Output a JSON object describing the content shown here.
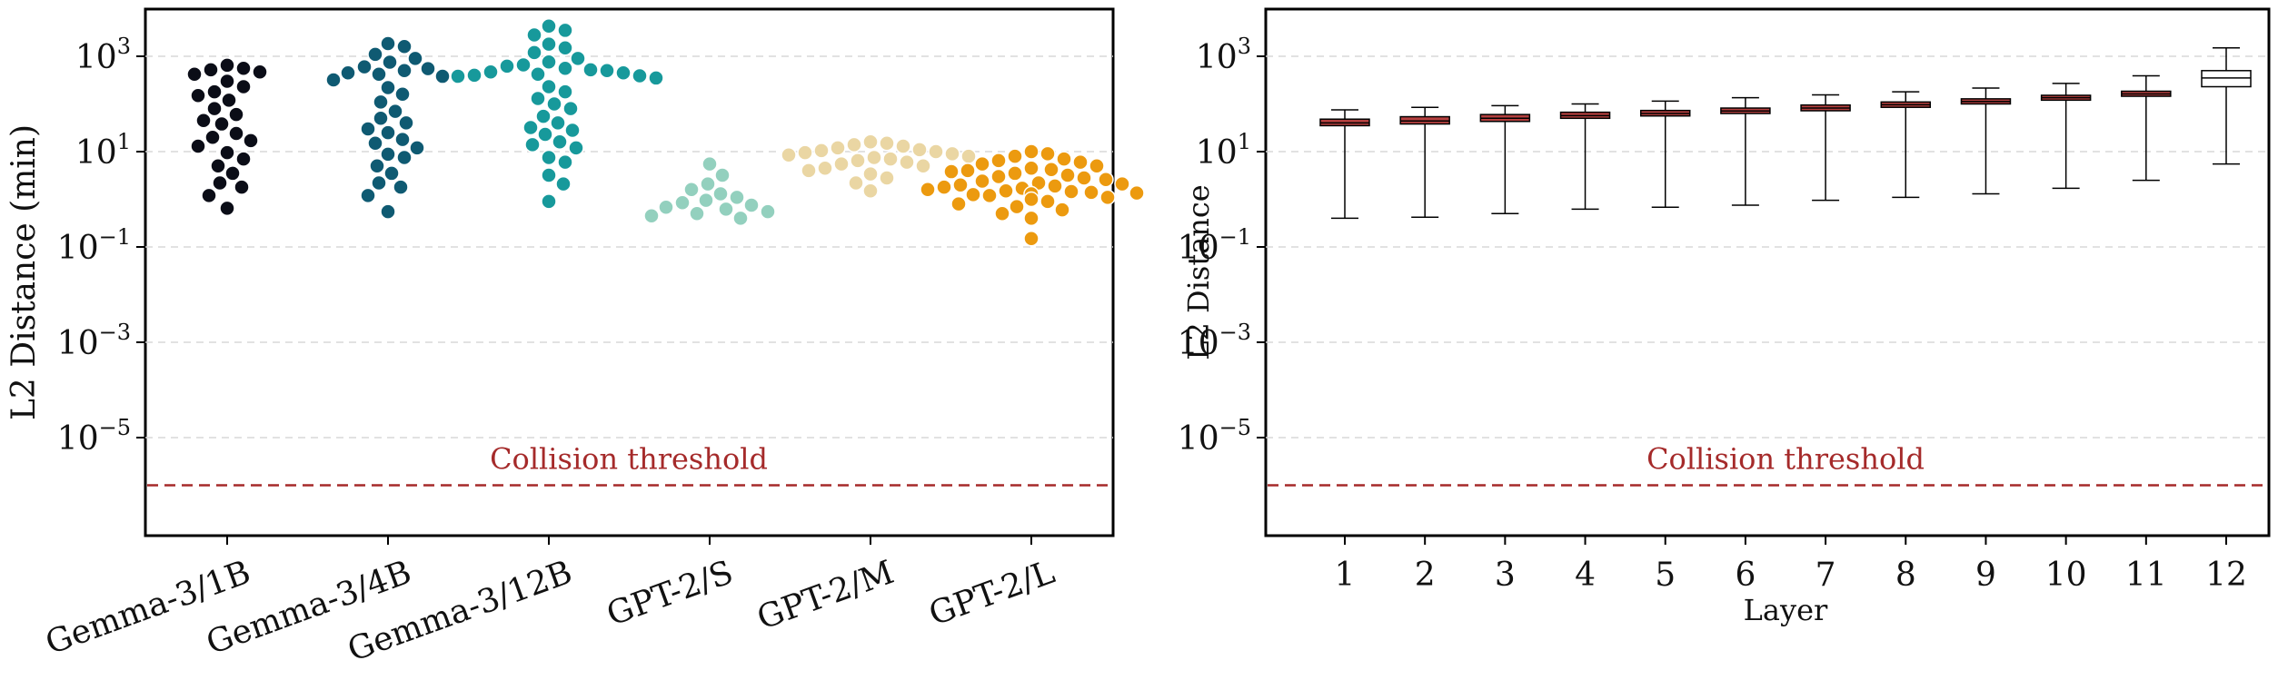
{
  "chart_data": [
    {
      "type": "scatter",
      "subtype": "swarm",
      "ylabel": "L2 Distance (min)",
      "xlabel": "",
      "yscale": "log",
      "ylim": [
        1e-07,
        10000.0
      ],
      "yticks": [
        {
          "base": "10",
          "exp": "3",
          "value": 1000
        },
        {
          "base": "10",
          "exp": "1",
          "value": 10
        },
        {
          "base": "10",
          "exp": "−1",
          "value": 0.1
        },
        {
          "base": "10",
          "exp": "−3",
          "value": 0.001
        },
        {
          "base": "10",
          "exp": "−5",
          "value": 1e-05
        }
      ],
      "grid": "y-dashed",
      "threshold": {
        "label": "Collision threshold",
        "value": 1e-06,
        "color": "#a52a2a"
      },
      "categories": [
        "Gemma-3/1B",
        "Gemma-3/4B",
        "Gemma-3/12B",
        "GPT-2/S",
        "GPT-2/M",
        "GPT-2/L"
      ],
      "colors": [
        "#0b0d17",
        "#0f5a72",
        "#17999b",
        "#93d0be",
        "#ead6a3",
        "#ec9a0f"
      ],
      "series": [
        {
          "category": "Gemma-3/1B",
          "values": [
            650,
            560,
            520,
            470,
            420,
            300,
            230,
            180,
            150,
            120,
            80,
            60,
            45,
            38,
            24,
            20,
            17,
            13,
            9.5,
            7,
            5,
            3.5,
            2.2,
            1.8,
            1.2,
            0.65
          ]
        },
        {
          "category": "Gemma-3/4B",
          "values": [
            1850,
            1600,
            1100,
            900,
            750,
            600,
            550,
            500,
            450,
            420,
            380,
            320,
            220,
            160,
            110,
            70,
            50,
            40,
            30,
            25,
            18,
            15,
            12,
            8.8,
            7.5,
            5,
            3.5,
            2.2,
            1.8,
            1.2,
            0.55
          ]
        },
        {
          "category": "Gemma-3/12B",
          "values": [
            4300,
            3500,
            2800,
            1800,
            1500,
            1200,
            900,
            760,
            660,
            620,
            560,
            520,
            500,
            470,
            450,
            420,
            400,
            390,
            380,
            350,
            230,
            180,
            130,
            100,
            80,
            55,
            40,
            32,
            28,
            23,
            16,
            14,
            12,
            7.5,
            6,
            3.2,
            2.1,
            0.9
          ]
        },
        {
          "category": "GPT-2/S",
          "values": [
            5.5,
            3.2,
            2.1,
            1.6,
            1.3,
            1.1,
            0.95,
            0.85,
            0.75,
            0.68,
            0.62,
            0.55,
            0.5,
            0.45,
            0.4
          ]
        },
        {
          "category": "GPT-2/M",
          "values": [
            16,
            15,
            14,
            13,
            12,
            11,
            10.5,
            10,
            9.5,
            9,
            8.5,
            8,
            7.5,
            7,
            6.5,
            6,
            5.5,
            5,
            4.5,
            4,
            3.4,
            2.8,
            2.2,
            1.5
          ]
        },
        {
          "category": "GPT-2/L",
          "values": [
            10,
            9,
            8,
            7,
            6.5,
            6,
            5.5,
            5,
            4.5,
            4.2,
            4,
            3.8,
            3.5,
            3.2,
            3,
            2.8,
            2.6,
            2.4,
            2.2,
            2.1,
            2,
            1.9,
            1.8,
            1.7,
            1.6,
            1.5,
            1.45,
            1.4,
            1.35,
            1.3,
            1.25,
            1.2,
            1.1,
            1.0,
            0.9,
            0.8,
            0.7,
            0.6,
            0.5,
            0.4,
            0.15
          ]
        }
      ]
    },
    {
      "type": "box",
      "xlabel": "Layer",
      "ylabel": "L2 Distance",
      "yscale": "log",
      "ylim": [
        1e-07,
        10000.0
      ],
      "yticks": [
        {
          "base": "10",
          "exp": "3",
          "value": 1000
        },
        {
          "base": "10",
          "exp": "1",
          "value": 10
        },
        {
          "base": "10",
          "exp": "−1",
          "value": 0.1
        },
        {
          "base": "10",
          "exp": "−3",
          "value": 0.001
        },
        {
          "base": "10",
          "exp": "−5",
          "value": 1e-05
        }
      ],
      "grid": "y-dashed",
      "threshold": {
        "label": "Collision threshold",
        "value": 1e-06,
        "color": "#a52a2a"
      },
      "box_color": "#b5403f",
      "last_box_color": "#ffffff",
      "categories": [
        "1",
        "2",
        "3",
        "4",
        "5",
        "6",
        "7",
        "8",
        "9",
        "10",
        "11",
        "12"
      ],
      "boxes": [
        {
          "layer": "1",
          "whislo": 0.4,
          "q1": 35,
          "med": 40,
          "q3": 48,
          "whishi": 75
        },
        {
          "layer": "2",
          "whislo": 0.42,
          "q1": 38,
          "med": 44,
          "q3": 54,
          "whishi": 85
        },
        {
          "layer": "3",
          "whislo": 0.5,
          "q1": 43,
          "med": 50,
          "q3": 60,
          "whishi": 92
        },
        {
          "layer": "4",
          "whislo": 0.62,
          "q1": 50,
          "med": 57,
          "q3": 67,
          "whishi": 100
        },
        {
          "layer": "5",
          "whislo": 0.68,
          "q1": 56,
          "med": 63,
          "q3": 73,
          "whishi": 115
        },
        {
          "layer": "6",
          "whislo": 0.75,
          "q1": 63,
          "med": 71,
          "q3": 82,
          "whishi": 135
        },
        {
          "layer": "7",
          "whislo": 0.95,
          "q1": 72,
          "med": 82,
          "q3": 95,
          "whishi": 155
        },
        {
          "layer": "8",
          "whislo": 1.1,
          "q1": 85,
          "med": 96,
          "q3": 110,
          "whishi": 180
        },
        {
          "layer": "9",
          "whislo": 1.3,
          "q1": 100,
          "med": 113,
          "q3": 128,
          "whishi": 215
        },
        {
          "layer": "10",
          "whislo": 1.7,
          "q1": 120,
          "med": 135,
          "q3": 152,
          "whishi": 270
        },
        {
          "layer": "11",
          "whislo": 2.5,
          "q1": 145,
          "med": 162,
          "q3": 185,
          "whishi": 390
        },
        {
          "layer": "12",
          "whislo": 5.5,
          "q1": 230,
          "med": 350,
          "q3": 500,
          "whishi": 1500
        }
      ]
    }
  ]
}
